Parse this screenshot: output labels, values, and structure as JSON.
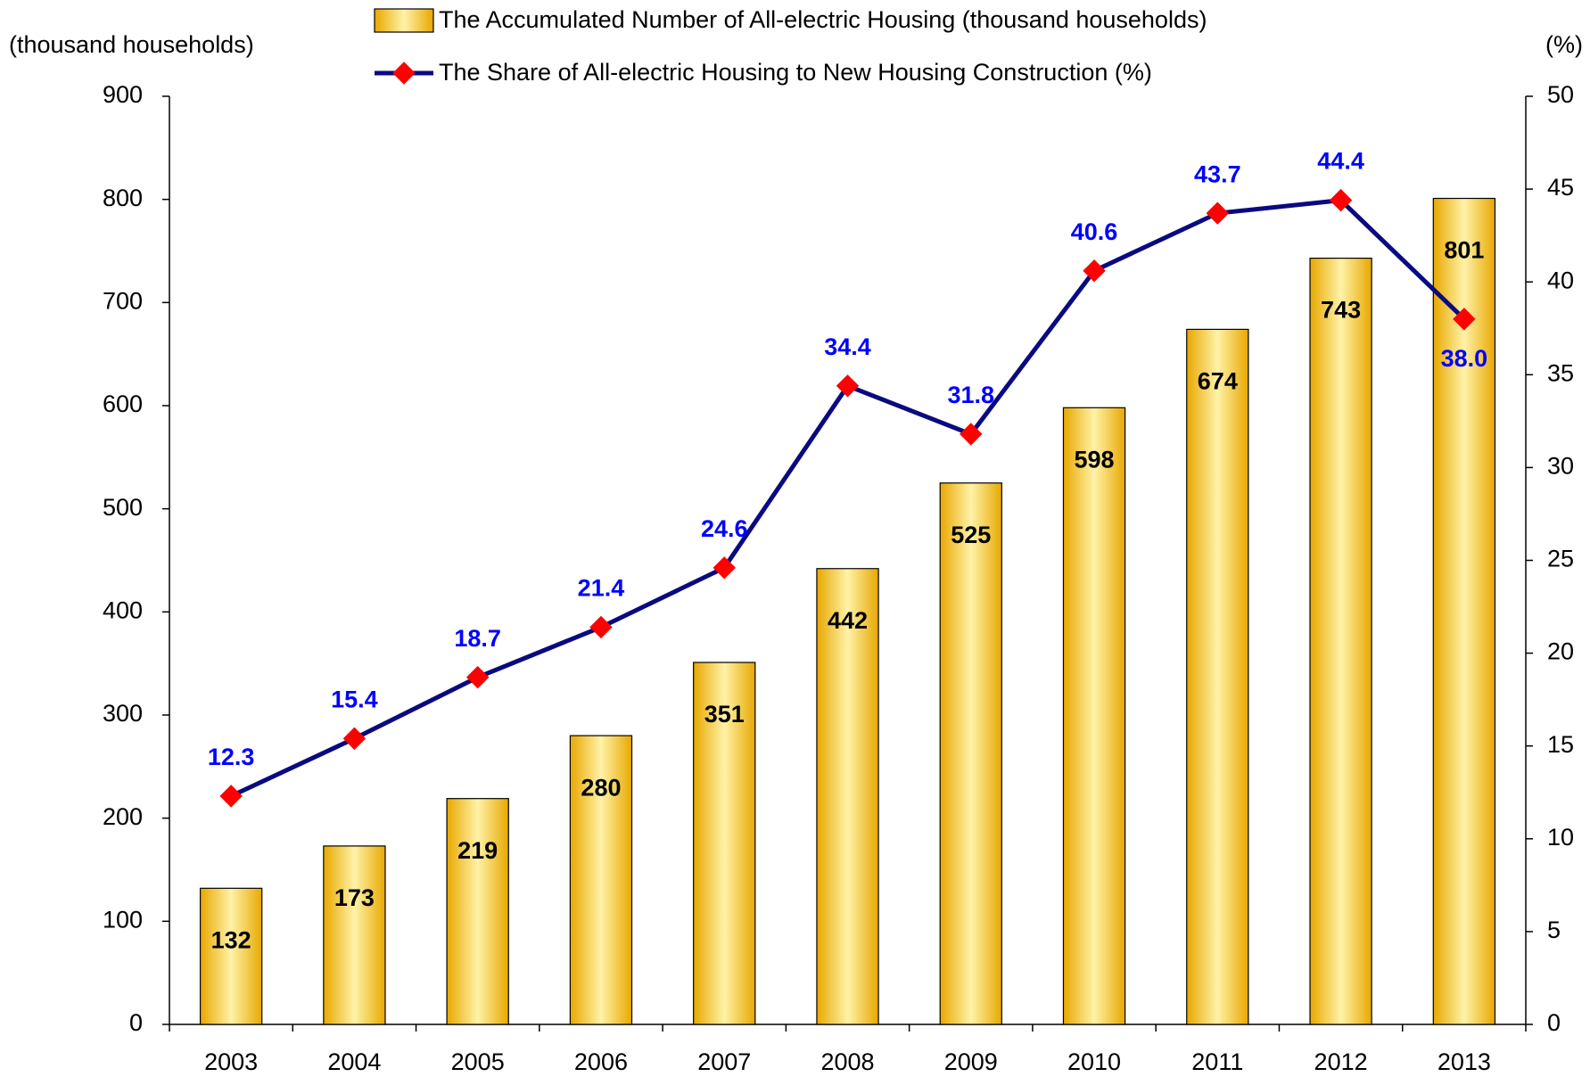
{
  "chart_data": {
    "type": "bar_line",
    "y_label": "(thousand households)",
    "y2_label": "(%)",
    "categories": [
      "2003",
      "2004",
      "2005",
      "2006",
      "2007",
      "2008",
      "2009",
      "2010",
      "2011",
      "2012",
      "2013"
    ],
    "series": [
      {
        "name": "The Accumulated Number of All-electric Housing (thousand households)",
        "type": "bar",
        "color": "#f5c000",
        "values": [
          132,
          173,
          219,
          280,
          351,
          442,
          525,
          598,
          674,
          743,
          801
        ]
      },
      {
        "name": "The Share of All-electric Housing to New Housing Construction (%)",
        "type": "line",
        "axis": "y2",
        "color": "#0a0a80",
        "marker_color": "#ff0000",
        "label_color": "#0000ff",
        "values": [
          12.3,
          15.4,
          18.7,
          21.4,
          24.6,
          34.4,
          31.8,
          40.6,
          43.7,
          44.4,
          38.0
        ],
        "value_labels": [
          "12.3",
          "15.4",
          "18.7",
          "21.4",
          "24.6",
          "34.4",
          "31.8",
          "40.6",
          "43.7",
          "44.4",
          "38.0"
        ]
      }
    ],
    "ylim": [
      0,
      900
    ],
    "yticks": [
      0,
      100,
      200,
      300,
      400,
      500,
      600,
      700,
      800,
      900
    ],
    "y2lim": [
      0,
      50
    ],
    "y2ticks": [
      0,
      5,
      10,
      15,
      20,
      25,
      30,
      35,
      40,
      45,
      50
    ]
  }
}
